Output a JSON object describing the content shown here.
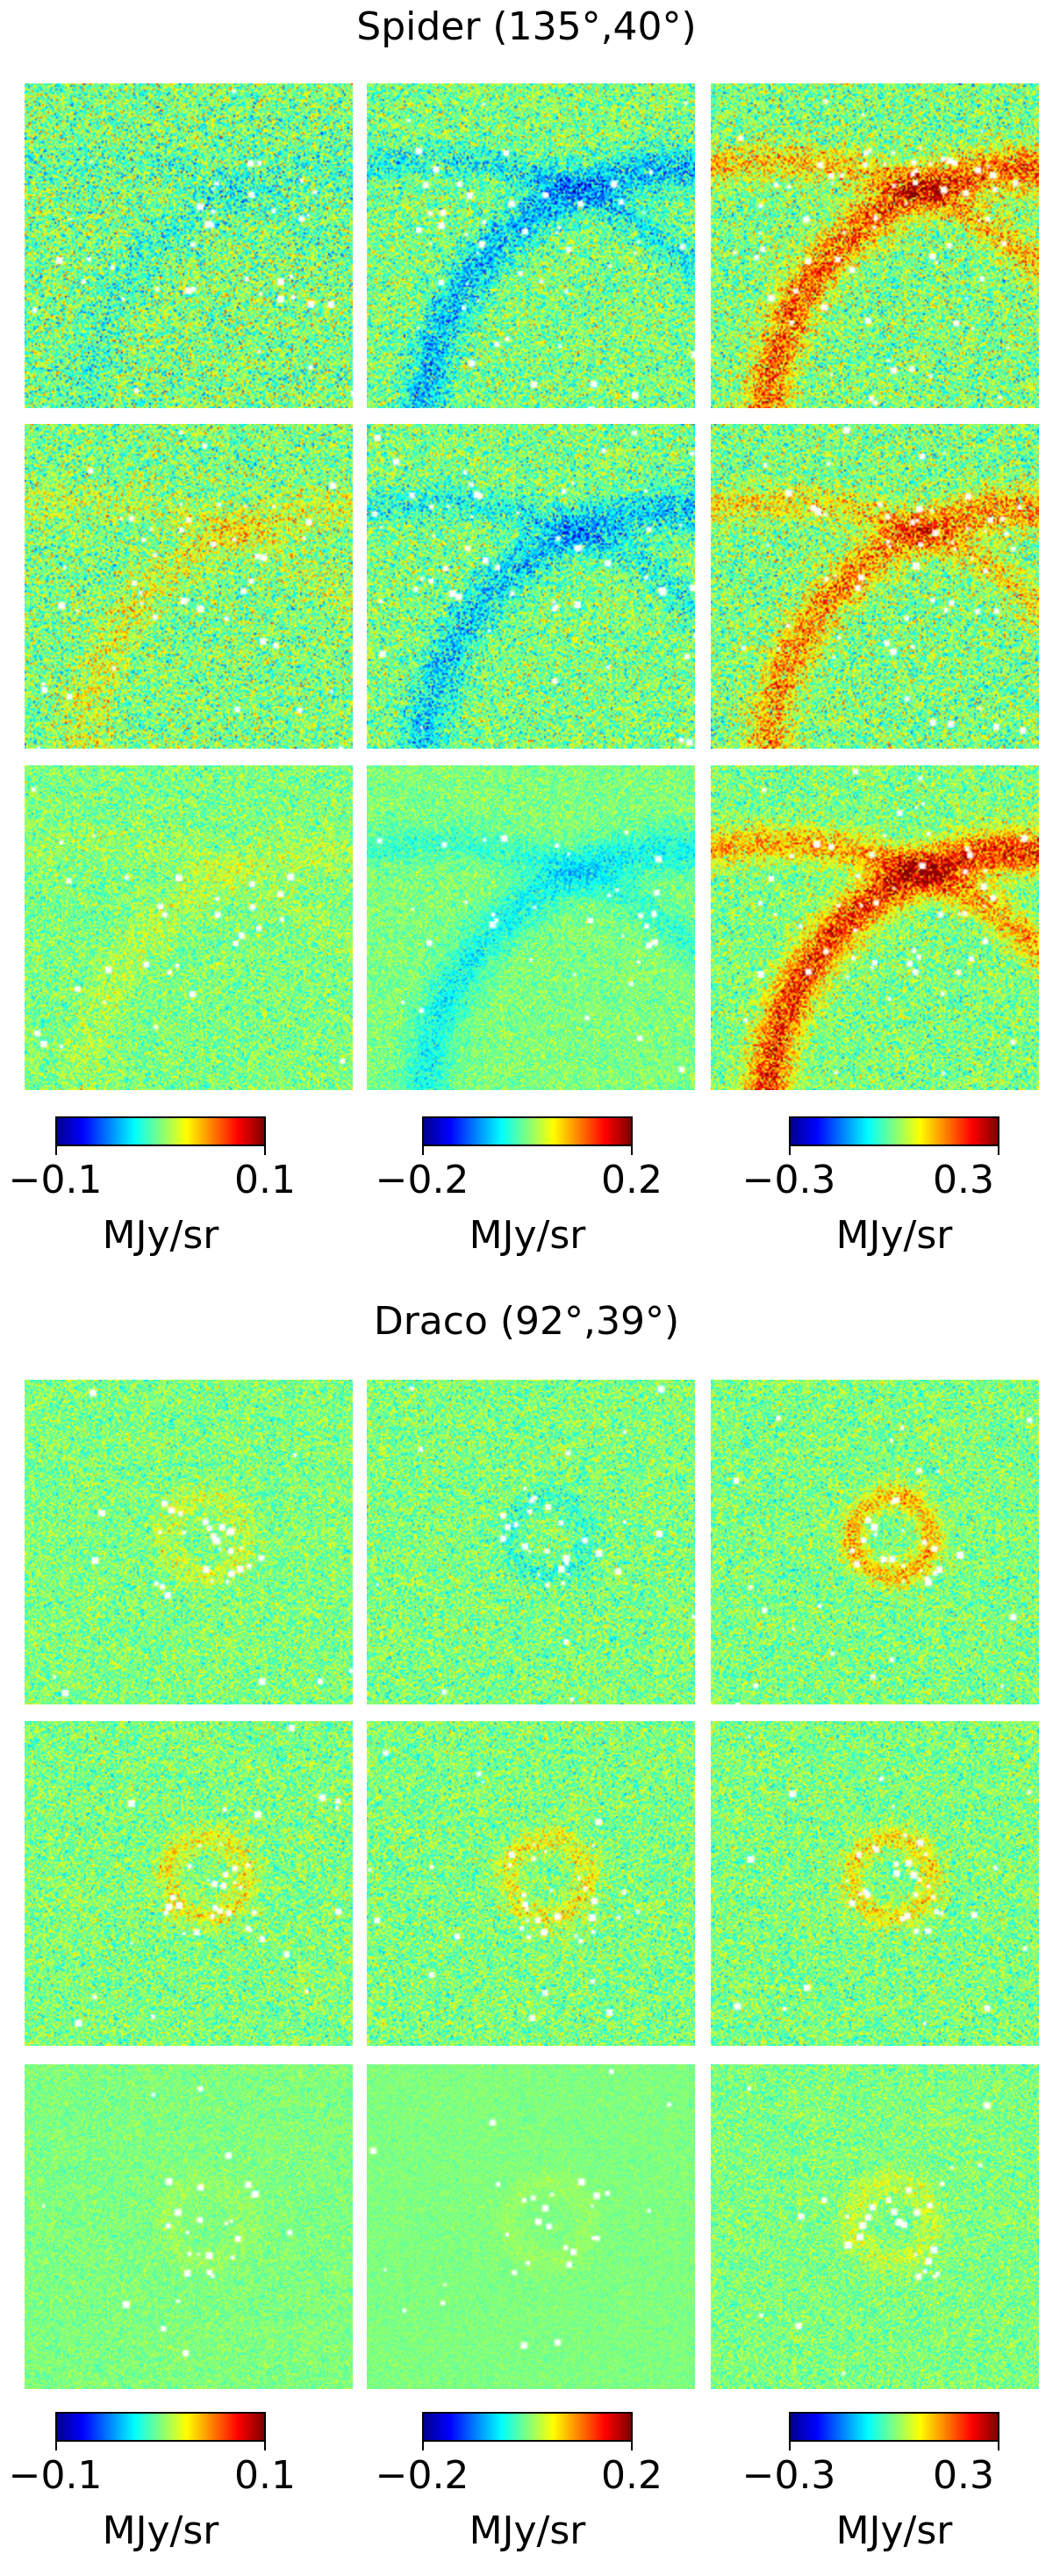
{
  "chart_data": [
    {
      "type": "heatmap",
      "title": "Spider (135°,40°)",
      "grid": {
        "rows": 3,
        "cols": 3
      },
      "colormap": "jet",
      "colorbars": [
        {
          "min_label": "−0.1",
          "max_label": "0.1",
          "range": [
            -0.1,
            0.1
          ],
          "unit": "MJy/sr"
        },
        {
          "min_label": "−0.2",
          "max_label": "0.2",
          "range": [
            -0.2,
            0.2
          ],
          "unit": "MJy/sr"
        },
        {
          "min_label": "−0.3",
          "max_label": "0.3",
          "range": [
            -0.3,
            0.3
          ],
          "unit": "MJy/sr"
        }
      ]
    },
    {
      "type": "heatmap",
      "title": "Draco (92°,39°)",
      "grid": {
        "rows": 3,
        "cols": 3
      },
      "colormap": "jet",
      "colorbars": [
        {
          "min_label": "−0.1",
          "max_label": "0.1",
          "range": [
            -0.1,
            0.1
          ],
          "unit": "MJy/sr"
        },
        {
          "min_label": "−0.2",
          "max_label": "0.2",
          "range": [
            -0.2,
            0.2
          ],
          "unit": "MJy/sr"
        },
        {
          "min_label": "−0.3",
          "max_label": "0.3",
          "range": [
            -0.3,
            0.3
          ],
          "unit": "MJy/sr"
        }
      ]
    }
  ]
}
